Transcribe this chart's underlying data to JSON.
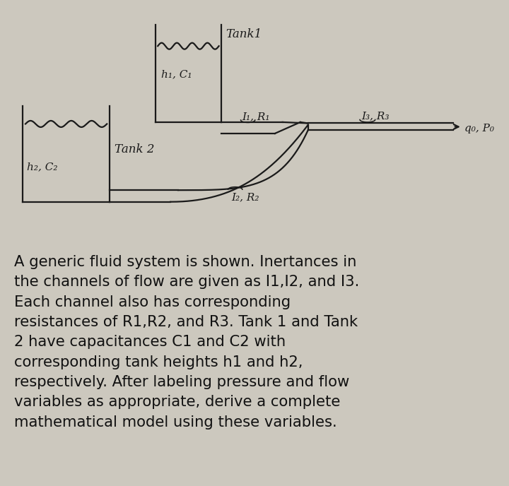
{
  "diagram_bg": "#ccc8be",
  "text_bg": "#ffffff",
  "fig_bg": "#ccc8be",
  "line_color": "#1a1a1a",
  "line_width": 1.6,
  "label_fontsize": 11,
  "body_fontsize": 15.2,
  "body_text": "A generic fluid system is shown. Inertances in\nthe channels of flow are given as I1,I2, and I3.\nEach channel also has corresponding\nresistances of R1,R2, and R3. Tank 1 and Tank\n2 have capacitances C1 and C2 with\ncorresponding tank heights h1 and h2,\nrespectively. After labeling pressure and flow\nvariables as appropriate, derive a complete\nmathematical model using these variables.",
  "tank1_label": "Tank1",
  "tank2_label": "Tank 2",
  "h1c1_label": "h₁, C₁",
  "h2c2_label": "h₂, C₂",
  "i1r1_label": "I₁, R₁",
  "i2r2_label": "I₂, R₂",
  "i3r3_label": "I₃, R₃",
  "q0p0_label": "q₀, P₀"
}
